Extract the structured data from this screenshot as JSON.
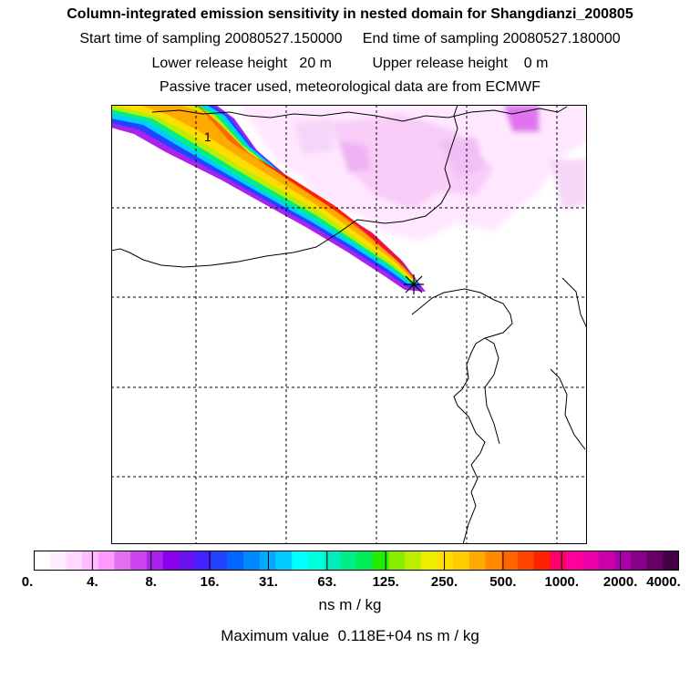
{
  "title": {
    "line1": "Column-integrated emission sensitivity in nested domain for Shangdianzi_200805",
    "line2_start_label": "Start time of sampling",
    "line2_start_value": "20080527.150000",
    "line2_end_label": "End time of sampling",
    "line2_end_value": "20080527.180000",
    "line3_lower_label": "Lower release height",
    "line3_lower_value": "20 m",
    "line3_upper_label": "Upper release height",
    "line3_upper_value": "0 m",
    "line4": "Passive tracer used, meteorological data are from ECMWF"
  },
  "map": {
    "plume_label": "1",
    "receptor_marker": "star-icon"
  },
  "colorbar": {
    "ticks": [
      "0.",
      "4.",
      "8.",
      "16.",
      "31.",
      "63.",
      "125.",
      "250.",
      "500.",
      "1000.",
      "2000.",
      "4000."
    ],
    "colors": [
      "#ffffff",
      "#ffeeff",
      "#ffd8ff",
      "#ffbbff",
      "#ff99ff",
      "#e070f0",
      "#cc44ee",
      "#aa22ee",
      "#8800ee",
      "#6611ee",
      "#4422ff",
      "#2244ff",
      "#0066ff",
      "#0088ff",
      "#00aaff",
      "#00ccff",
      "#00ffff",
      "#00ffdd",
      "#00eebb",
      "#00ee88",
      "#00ee55",
      "#22ee00",
      "#88ee00",
      "#bbee00",
      "#eeee00",
      "#ffdd00",
      "#ffcc00",
      "#ffaa00",
      "#ff8800",
      "#ff6600",
      "#ff4400",
      "#ff2200",
      "#ff0066",
      "#ff0099",
      "#ee00aa",
      "#cc00aa",
      "#aa00aa",
      "#880088",
      "#660066",
      "#440044"
    ],
    "unit": "ns m / kg"
  },
  "max_value_text": "Maximum value  0.118E+04 ns m / kg"
}
